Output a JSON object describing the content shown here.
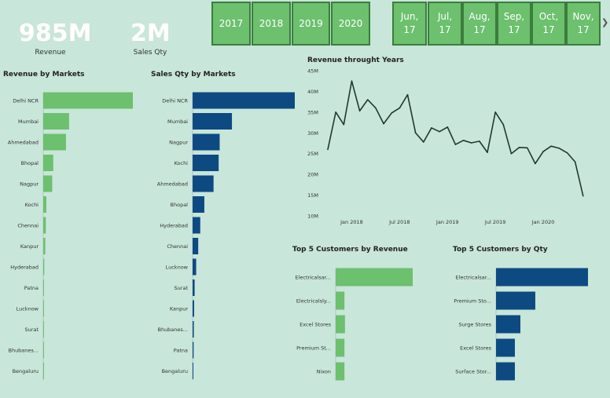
{
  "kpis": {
    "revenue": {
      "value": "985M",
      "label": "Revenue"
    },
    "qty": {
      "value": "2M",
      "label": "Sales Qty"
    }
  },
  "years": [
    "2017",
    "2018",
    "2019",
    "2020"
  ],
  "months": [
    "Jun,\n17",
    "Jul,\n17",
    "Aug,\n17",
    "Sep,\n17",
    "Oct,\n17",
    "Nov,\n17"
  ],
  "colors": {
    "green": "#6cc06e",
    "blue": "#0d4a82",
    "line": "#1f3a2a",
    "bg": "#c8e6d9"
  },
  "chart_data": [
    {
      "type": "bar",
      "title": "Revenue by Markets",
      "categories": [
        "Delhi NCR",
        "Mumbai",
        "Ahmedabad",
        "Bhopal",
        "Nagpur",
        "Kochi",
        "Chennai",
        "Kanpur",
        "Hyderabad",
        "Patna",
        "Lucknow",
        "Surat",
        "Bhubanes...",
        "Bengaluru"
      ],
      "values": [
        520,
        150,
        132,
        58,
        52,
        18,
        15,
        12,
        6,
        4,
        3,
        2,
        1,
        0.5
      ]
    },
    {
      "type": "bar",
      "title": "Sales Qty by Markets",
      "categories": [
        "Delhi NCR",
        "Mumbai",
        "Nagpur",
        "Kochi",
        "Ahmedabad",
        "Bhopal",
        "Hyderabad",
        "Chennai",
        "Lucknow",
        "Surat",
        "Kanpur",
        "Bhubanes...",
        "Patna",
        "Bengaluru"
      ],
      "values": [
        1000,
        385,
        265,
        255,
        205,
        115,
        75,
        55,
        35,
        20,
        15,
        12,
        10,
        5
      ]
    },
    {
      "type": "line",
      "title": "Revenue throught Years",
      "yticks": [
        "45M",
        "40M",
        "35M",
        "30M",
        "25M",
        "20M",
        "15M",
        "10M"
      ],
      "ylim": [
        10,
        45
      ],
      "xticks": [
        {
          "label": "Jan 2018",
          "i": 3
        },
        {
          "label": "Jul 2018",
          "i": 9
        },
        {
          "label": "Jan 2019",
          "i": 15
        },
        {
          "label": "Jul 2019",
          "i": 21
        },
        {
          "label": "Jan 2020",
          "i": 27
        }
      ],
      "values": [
        26,
        35,
        32,
        42.5,
        35.3,
        38,
        36,
        32.2,
        34.8,
        36,
        39.2,
        30,
        27.8,
        31.2,
        30.3,
        31.4,
        27.2,
        28.2,
        27.6,
        28,
        25.3,
        35,
        32,
        25,
        26.5,
        26.4,
        22.6,
        25.5,
        26.8,
        26.3,
        25.2,
        23,
        14.8
      ]
    },
    {
      "type": "bar",
      "title": "Top 5 Customers by Revenue",
      "categories": [
        "Electricalsar...",
        "Electricalsly...",
        "Excel Stores",
        "Premium St...",
        "Nixon"
      ],
      "values": [
        100,
        11.4,
        12.1,
        11.4,
        11.4
      ]
    },
    {
      "type": "bar",
      "title": "Top 5 Customers by Qty",
      "categories": [
        "Electricalsar...",
        "Premium Sto...",
        "Surge Stores",
        "Excel Stores",
        "Surface Stor..."
      ],
      "values": [
        100,
        42.7,
        26.5,
        20.5,
        20.5
      ]
    }
  ]
}
